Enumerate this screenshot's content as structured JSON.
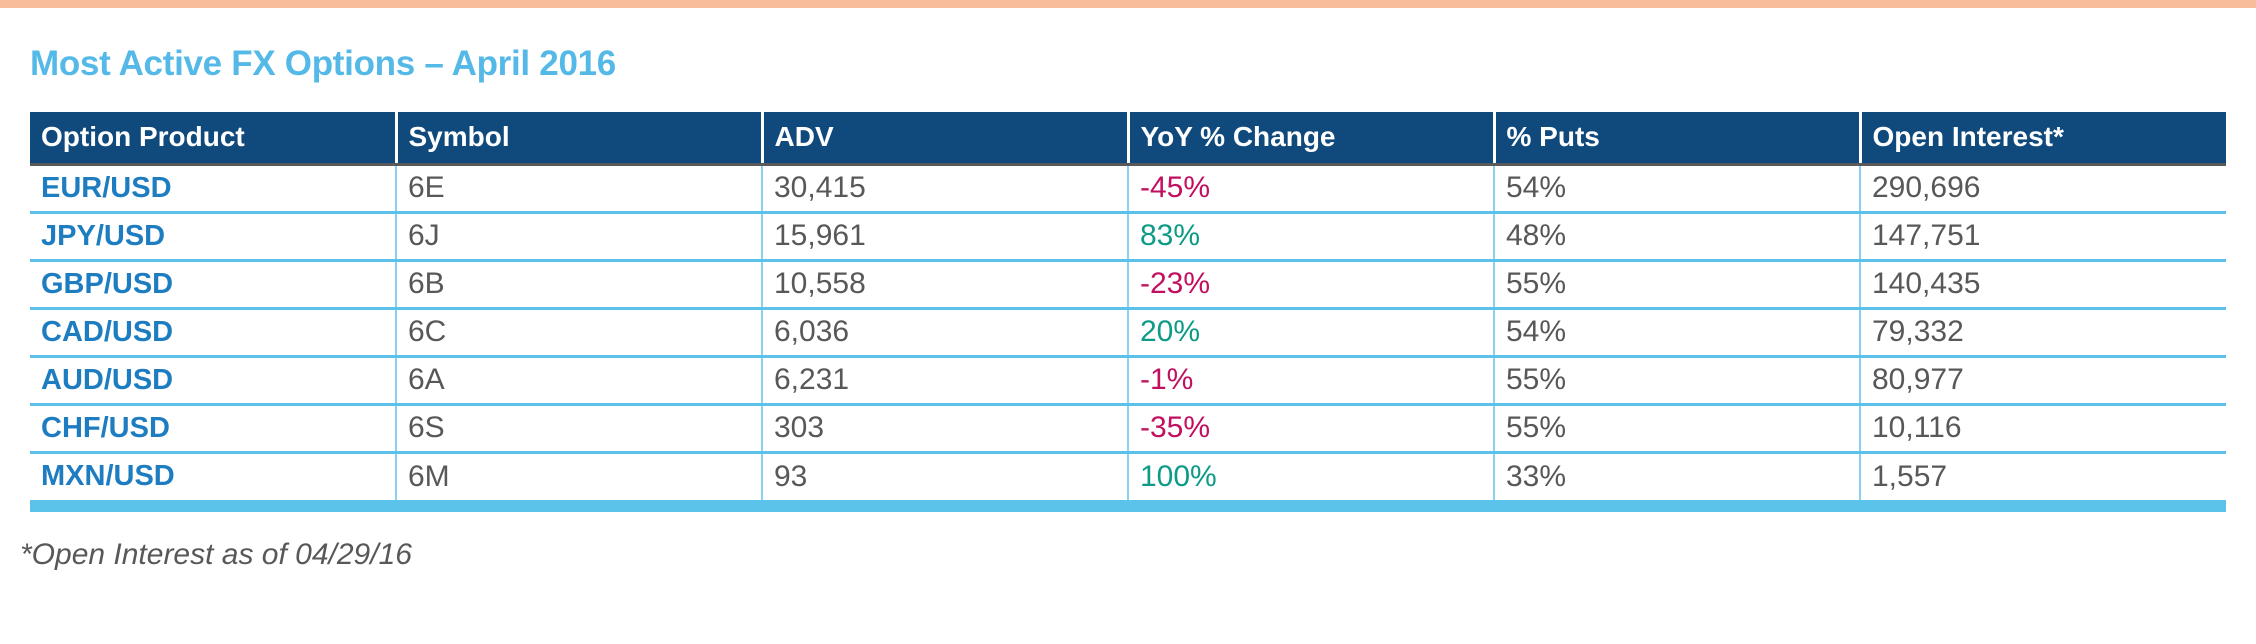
{
  "title": "Most Active FX Options – April 2016",
  "footnote": "*Open Interest as of 04/29/16",
  "colors": {
    "top_accent_bar": "#f6be9b",
    "title_blue": "#55b9e8",
    "header_navy": "#104a7d",
    "header_text": "#ffffff",
    "product_blue": "#1e7dc1",
    "body_text_gray": "#57585a",
    "negative_change": "#c20f5f",
    "positive_change": "#0d9b87",
    "row_divider_blue": "#5bc2e9",
    "column_divider_blue": "#8ad1ef",
    "header_bottom_border": "#58595b"
  },
  "table": {
    "columns": [
      "Option Product",
      "Symbol",
      "ADV",
      "YoY % Change",
      "% Puts",
      "Open Interest*"
    ],
    "rows": [
      {
        "product": "EUR/USD",
        "symbol": "6E",
        "adv": "30,415",
        "yoy": "-45%",
        "puts": "54%",
        "open_interest": "290,696"
      },
      {
        "product": "JPY/USD",
        "symbol": "6J",
        "adv": "15,961",
        "yoy": "83%",
        "puts": "48%",
        "open_interest": "147,751"
      },
      {
        "product": "GBP/USD",
        "symbol": "6B",
        "adv": "10,558",
        "yoy": "-23%",
        "puts": "55%",
        "open_interest": "140,435"
      },
      {
        "product": "CAD/USD",
        "symbol": "6C",
        "adv": "6,036",
        "yoy": "20%",
        "puts": "54%",
        "open_interest": "79,332"
      },
      {
        "product": "AUD/USD",
        "symbol": "6A",
        "adv": "6,231",
        "yoy": "-1%",
        "puts": "55%",
        "open_interest": "80,977"
      },
      {
        "product": "CHF/USD",
        "symbol": "6S",
        "adv": "303",
        "yoy": "-35%",
        "puts": "55%",
        "open_interest": "10,116"
      },
      {
        "product": "MXN/USD",
        "symbol": "6M",
        "adv": "93",
        "yoy": "100%",
        "puts": "33%",
        "open_interest": "1,557"
      }
    ]
  },
  "chart_data": {
    "type": "table",
    "title": "Most Active FX Options – April 2016",
    "columns": [
      "Option Product",
      "Symbol",
      "ADV",
      "YoY % Change",
      "% Puts",
      "Open Interest*"
    ],
    "rows": [
      [
        "EUR/USD",
        "6E",
        30415,
        "-45%",
        "54%",
        290696
      ],
      [
        "JPY/USD",
        "6J",
        15961,
        "83%",
        "48%",
        147751
      ],
      [
        "GBP/USD",
        "6B",
        10558,
        "-23%",
        "55%",
        140435
      ],
      [
        "CAD/USD",
        "6C",
        6036,
        "20%",
        "54%",
        79332
      ],
      [
        "AUD/USD",
        "6A",
        6231,
        "-1%",
        "55%",
        80977
      ],
      [
        "CHF/USD",
        "6S",
        303,
        "-35%",
        "55%",
        10116
      ],
      [
        "MXN/USD",
        "6M",
        93,
        "100%",
        "33%",
        1557
      ]
    ],
    "footnote": "*Open Interest as of 04/29/16"
  }
}
